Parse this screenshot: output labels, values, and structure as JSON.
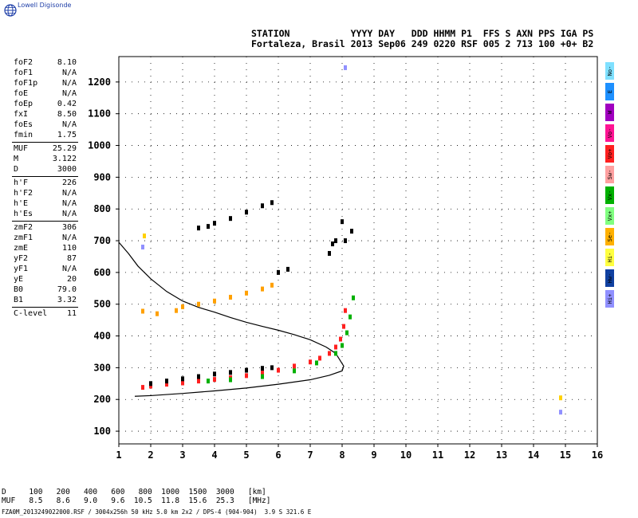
{
  "logo": {
    "text": "Lowell Digisonde",
    "icon": "globe-icon"
  },
  "header": {
    "line1": "STATION           YYYY DAY   DDD HHMM P1  FFS S AXN PPS IGA PS",
    "line2": "Fortaleza, Brasil 2013 Sep06 249 0220 RSF 005 2 713 100 +0+ B2"
  },
  "params": [
    {
      "label": "foF2",
      "value": "8.10"
    },
    {
      "label": "foF1",
      "value": "N/A"
    },
    {
      "label": "foF1p",
      "value": "N/A"
    },
    {
      "label": "foE",
      "value": "N/A"
    },
    {
      "label": "foEp",
      "value": "0.42"
    },
    {
      "label": "fxI",
      "value": "8.50"
    },
    {
      "label": "foEs",
      "value": "N/A"
    },
    {
      "label": "fmin",
      "value": "1.75"
    },
    {
      "label": "MUF",
      "value": "25.29"
    },
    {
      "label": "M",
      "value": "3.122"
    },
    {
      "label": "D",
      "value": "3000"
    },
    {
      "label": "h'F",
      "value": "226"
    },
    {
      "label": "h'F2",
      "value": "N/A"
    },
    {
      "label": "h'E",
      "value": "N/A"
    },
    {
      "label": "h'Es",
      "value": "N/A"
    },
    {
      "label": "zmF2",
      "value": "306"
    },
    {
      "label": "zmF1",
      "value": "N/A"
    },
    {
      "label": "zmE",
      "value": "110"
    },
    {
      "label": "yF2",
      "value": "87"
    },
    {
      "label": "yF1",
      "value": "N/A"
    },
    {
      "label": "yE",
      "value": "20"
    },
    {
      "label": "B0",
      "value": "79.0"
    },
    {
      "label": "B1",
      "value": "3.32"
    },
    {
      "label": "C-level",
      "value": "11"
    }
  ],
  "legend": [
    {
      "label": "No-",
      "color": "#7fe0ff"
    },
    {
      "label": "E",
      "color": "#1e90ff"
    },
    {
      "label": "W",
      "color": "#a000c0"
    },
    {
      "label": "Vo-",
      "color": "#ff1493"
    },
    {
      "label": "Vo+",
      "color": "#ff2020"
    },
    {
      "label": "Sw-",
      "color": "#ffa0a0"
    },
    {
      "label": "Vx-",
      "color": "#00b000"
    },
    {
      "label": "Vx+",
      "color": "#80ff80"
    },
    {
      "label": "Se-",
      "color": "#ffb000"
    },
    {
      "label": "Hi-",
      "color": "#ffff40"
    },
    {
      "label": "Hw-",
      "color": "#1040a0"
    },
    {
      "label": "Hi+",
      "color": "#9090ff"
    }
  ],
  "bottom": {
    "d_row": "D     100   200   400   600   800  1000  1500  3000   [km]",
    "muf_row": "MUF   8.5   8.6   9.0   9.6  10.5  11.8  15.6  25.3   [MHz]",
    "footer": "FZA0M_2013249022000.RSF / 3004x256h 50 kHz 5.0 km 2x2 / DPS-4 (904-904)  3.9 S 321.6 E"
  },
  "chart_data": {
    "type": "scatter",
    "xlim": [
      1,
      16
    ],
    "ylim": [
      60,
      1280
    ],
    "x_ticks": [
      "1",
      "2",
      "3",
      "4",
      "5",
      "6",
      "7",
      "8",
      "9",
      "10",
      "11",
      "12",
      "13",
      "14",
      "15",
      "16"
    ],
    "y_ticks": [
      "100",
      "200",
      "300",
      "400",
      "500",
      "600",
      "700",
      "800",
      "900",
      "1000",
      "1100",
      "1200"
    ],
    "grid": true,
    "profile_curve": [
      [
        1.0,
        695
      ],
      [
        1.3,
        660
      ],
      [
        1.6,
        620
      ],
      [
        2.0,
        580
      ],
      [
        2.5,
        540
      ],
      [
        3.0,
        510
      ],
      [
        3.5,
        490
      ],
      [
        4.0,
        475
      ],
      [
        4.5,
        458
      ],
      [
        5.0,
        443
      ],
      [
        5.5,
        430
      ],
      [
        6.0,
        418
      ],
      [
        6.5,
        404
      ],
      [
        7.0,
        388
      ],
      [
        7.5,
        365
      ],
      [
        7.8,
        345
      ],
      [
        8.05,
        305
      ],
      [
        8.0,
        290
      ],
      [
        7.6,
        276
      ],
      [
        7.0,
        262
      ],
      [
        6.0,
        248
      ],
      [
        5.0,
        236
      ],
      [
        4.0,
        227
      ],
      [
        3.0,
        219
      ],
      [
        2.0,
        212
      ],
      [
        1.5,
        210
      ]
    ],
    "traces": [
      {
        "name": "first-hop-o",
        "color": "#ff2020",
        "x": [
          1.75,
          2.0,
          2.5,
          3.0,
          3.5,
          4.0,
          4.5,
          5.0,
          5.5,
          6.0,
          6.5,
          7.0,
          7.3,
          7.6,
          7.8,
          7.95,
          8.05,
          8.1
        ],
        "y": [
          238,
          242,
          248,
          252,
          258,
          263,
          268,
          275,
          283,
          292,
          305,
          318,
          330,
          345,
          365,
          390,
          430,
          480
        ]
      },
      {
        "name": "first-hop-x",
        "color": "#00b000",
        "x": [
          3.8,
          4.5,
          5.5,
          6.5,
          7.2,
          7.8,
          8.0,
          8.15,
          8.25,
          8.35
        ],
        "y": [
          258,
          262,
          272,
          290,
          315,
          345,
          370,
          410,
          460,
          520
        ]
      },
      {
        "name": "first-hop-spread",
        "color": "#000000",
        "x": [
          2.0,
          2.5,
          3.0,
          3.5,
          4.0,
          4.5,
          5.0,
          5.5,
          5.8
        ],
        "y": [
          250,
          258,
          265,
          272,
          280,
          285,
          292,
          298,
          300
        ]
      },
      {
        "name": "second-hop",
        "color": "#ffa000",
        "x": [
          1.75,
          2.2,
          2.8,
          3.0,
          3.5,
          4.0,
          4.5,
          5.0,
          5.5,
          5.8
        ],
        "y": [
          478,
          470,
          480,
          492,
          500,
          510,
          522,
          535,
          548,
          560
        ]
      },
      {
        "name": "third-hop",
        "color": "#000000",
        "x": [
          3.5,
          3.8,
          4.0,
          4.5,
          5.0,
          5.5,
          5.8
        ],
        "y": [
          740,
          745,
          755,
          770,
          790,
          810,
          820
        ]
      },
      {
        "name": "high-trace",
        "color": "#000000",
        "x": [
          6.0,
          6.3,
          7.6,
          7.7,
          7.8,
          8.0,
          8.1,
          8.3
        ],
        "y": [
          600,
          610,
          660,
          690,
          700,
          760,
          700,
          730
        ]
      },
      {
        "name": "scattered",
        "color": "#9090ff",
        "x": [
          1.75,
          8.1,
          14.85
        ],
        "y": [
          680,
          1245,
          160
        ]
      },
      {
        "name": "scattered-yellow",
        "color": "#ffd000",
        "x": [
          1.8,
          14.85
        ],
        "y": [
          715,
          205
        ]
      }
    ]
  }
}
